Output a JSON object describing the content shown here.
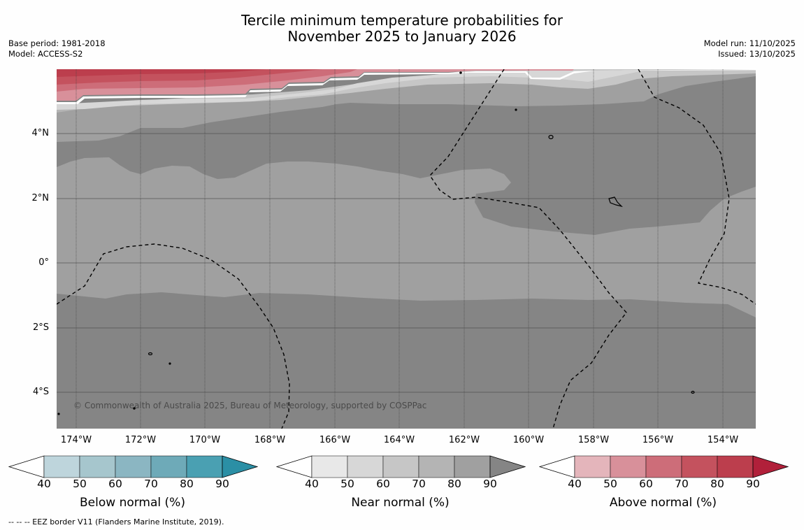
{
  "title": {
    "line1": "Tercile minimum temperature probabilities for",
    "line2": "November 2025 to January 2026"
  },
  "meta": {
    "base_period": "Base period: 1981-2018",
    "model": "Model: ACCESS-S2",
    "model_run": "Model run: 11/10/2025",
    "issued": "Issued: 13/10/2025"
  },
  "map": {
    "copyright": "© Commonwealth of Australia 2025, Bureau of Meteorology, supported by COSPPac",
    "lat_labels": [
      "4°N",
      "2°N",
      "0°",
      "2°S",
      "4°S"
    ],
    "lon_labels": [
      "174°W",
      "172°W",
      "170°W",
      "168°W",
      "166°W",
      "164°W",
      "162°W",
      "160°W",
      "158°W",
      "156°W",
      "154°W"
    ],
    "colors": {
      "near_90": "#858585",
      "near_80": "#a0a0a0",
      "near_70": "#b4b4b4",
      "near_60": "#c6c6c6",
      "near_50": "#d7d7d7",
      "above_50": "#d8909a",
      "above_60": "#cd6d79",
      "above_70": "#c4525e",
      "above_80": "#bc3e4d"
    }
  },
  "colorbars": [
    {
      "title": "Below normal (%)",
      "ticks": [
        "40",
        "50",
        "60",
        "70",
        "80",
        "90"
      ],
      "colors": [
        "#ffffff",
        "#bed5dc",
        "#a6c6cd",
        "#8bb6c2",
        "#6eaab8",
        "#4aa0b2",
        "#2b8fa5"
      ]
    },
    {
      "title": "Near normal (%)",
      "ticks": [
        "40",
        "50",
        "60",
        "70",
        "80",
        "90"
      ],
      "colors": [
        "#ffffff",
        "#e8e8e8",
        "#d7d7d7",
        "#c6c6c6",
        "#b4b4b4",
        "#a0a0a0",
        "#858585"
      ]
    },
    {
      "title": "Above normal (%)",
      "ticks": [
        "40",
        "50",
        "60",
        "70",
        "80",
        "90"
      ],
      "colors": [
        "#ffffff",
        "#e4b5bb",
        "#d8909a",
        "#cd6d79",
        "#c4525e",
        "#bc3e4d",
        "#b1203a"
      ]
    }
  ],
  "footer": {
    "legend_text": "--  --  -- EEZ border V11 (Flanders Marine Institute, 2019)."
  }
}
